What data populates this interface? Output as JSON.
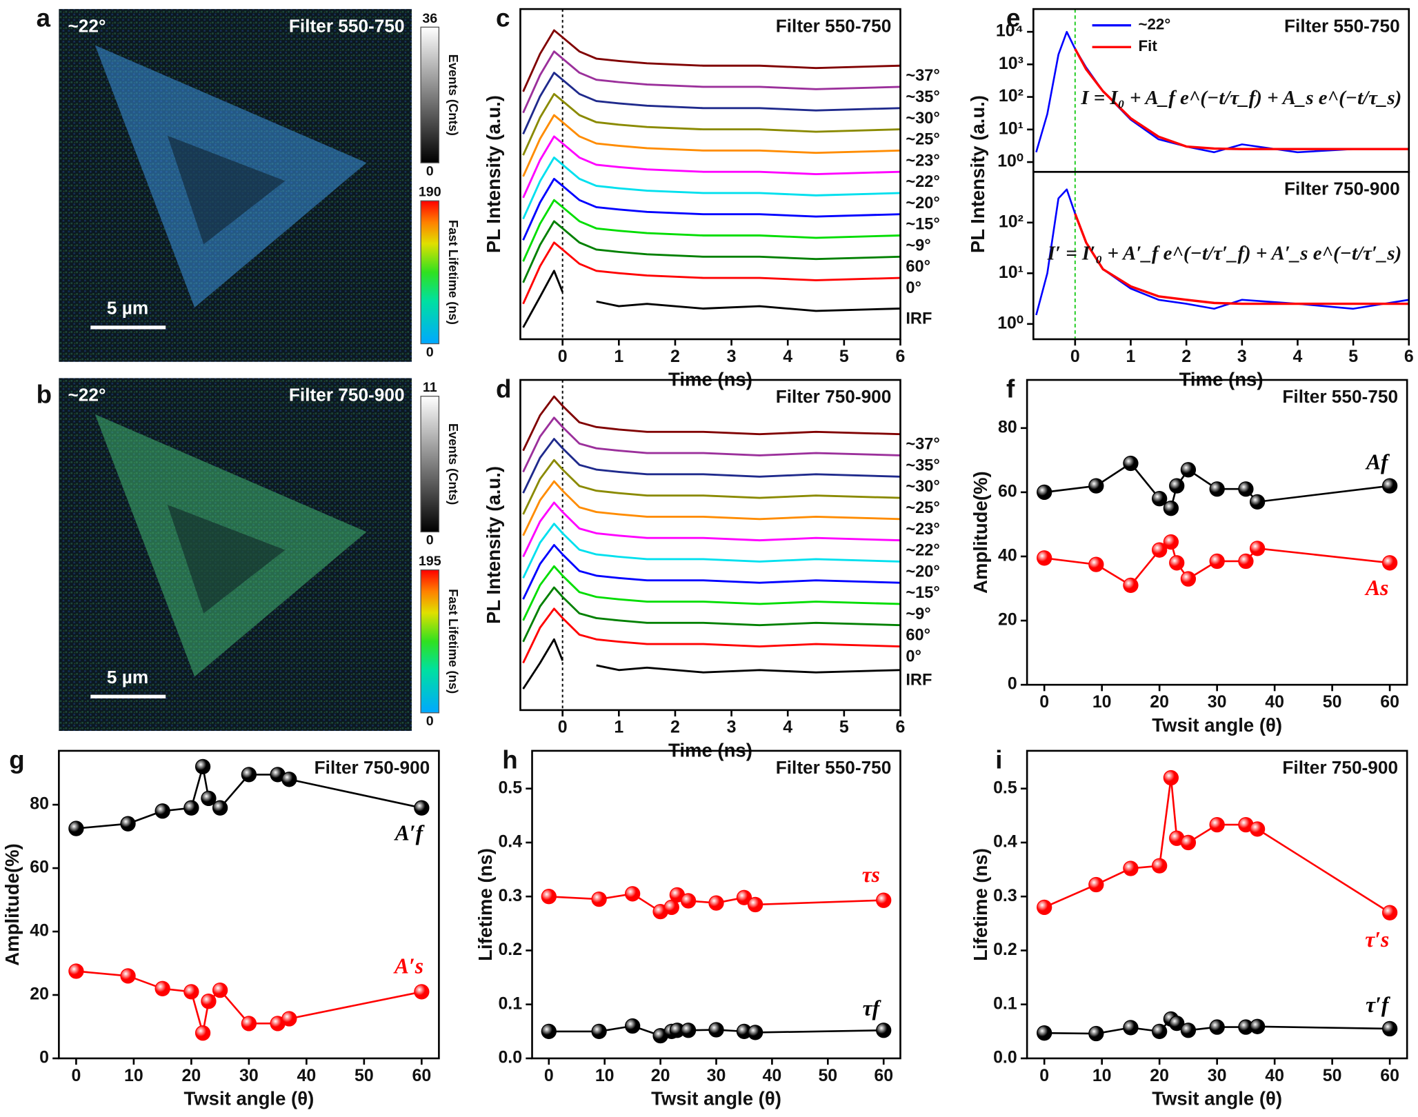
{
  "chart_data": [
    {
      "type": "image",
      "label": "a",
      "angle": "~22°",
      "title": "Filter 550-750",
      "scale": "5 µm",
      "events": {
        "max": 36,
        "min": 0,
        "label": "Events (Cnts)"
      },
      "lifetime": {
        "max": 190,
        "min": 0,
        "label": "Fast Lifetime (ns)"
      },
      "tint": "#3b8fd8"
    },
    {
      "type": "image",
      "label": "b",
      "angle": "~22°",
      "title": "Filter 750-900",
      "scale": "5 µm",
      "events": {
        "max": 11,
        "min": 0,
        "label": "Events (Cnts)"
      },
      "lifetime": {
        "max": 195,
        "min": 0,
        "label": "Fast Lifetime (ns)"
      },
      "tint": "#3fb070"
    },
    {
      "type": "decay",
      "label": "c",
      "title": "Filter 550-750",
      "xlabel": "Time (ns)",
      "ylabel": "PL Intensity (a.u.)",
      "xlim": [
        -0.75,
        6
      ],
      "xticks": [
        0,
        1,
        2,
        3,
        4,
        5,
        6
      ],
      "ylim": [
        0,
        14
      ],
      "vline": 0,
      "x": [
        -0.7,
        -0.4,
        -0.15,
        0,
        0.3,
        0.6,
        1,
        1.5,
        2.5,
        3.5,
        4.5,
        6
      ],
      "series": [
        {
          "name": "~37°",
          "color": "#800000",
          "values": [
            10.5,
            12.1,
            13.1,
            12.8,
            12.2,
            11.9,
            11.8,
            11.7,
            11.6,
            11.6,
            11.5,
            11.6
          ]
        },
        {
          "name": "~35°",
          "color": "#9b309b",
          "values": [
            9.6,
            11.2,
            12.2,
            11.9,
            11.3,
            11.0,
            10.9,
            10.8,
            10.7,
            10.7,
            10.6,
            10.7
          ]
        },
        {
          "name": "~30°",
          "color": "#1f2a8c",
          "values": [
            8.7,
            10.3,
            11.3,
            11.0,
            10.4,
            10.1,
            10.0,
            9.9,
            9.8,
            9.8,
            9.7,
            9.8
          ]
        },
        {
          "name": "~25°",
          "color": "#8a8a00",
          "values": [
            7.8,
            9.4,
            10.4,
            10.1,
            9.5,
            9.2,
            9.1,
            9.0,
            8.9,
            8.9,
            8.8,
            8.9
          ]
        },
        {
          "name": "~23°",
          "color": "#ff8c00",
          "values": [
            6.9,
            8.5,
            9.5,
            9.2,
            8.6,
            8.3,
            8.2,
            8.1,
            8.0,
            8.0,
            7.9,
            8.0
          ]
        },
        {
          "name": "~22°",
          "color": "#ff00ff",
          "values": [
            6.0,
            7.6,
            8.6,
            8.3,
            7.7,
            7.4,
            7.3,
            7.2,
            7.1,
            7.1,
            7.0,
            7.1
          ]
        },
        {
          "name": "~20°",
          "color": "#00e0ee",
          "values": [
            5.1,
            6.7,
            7.7,
            7.4,
            6.8,
            6.5,
            6.4,
            6.3,
            6.2,
            6.2,
            6.1,
            6.2
          ]
        },
        {
          "name": "~15°",
          "color": "#0000ff",
          "values": [
            4.2,
            5.8,
            6.8,
            6.5,
            5.9,
            5.6,
            5.5,
            5.4,
            5.3,
            5.3,
            5.2,
            5.3
          ]
        },
        {
          "name": "~9°",
          "color": "#00dd00",
          "values": [
            3.3,
            4.9,
            5.9,
            5.6,
            5.0,
            4.7,
            4.6,
            4.5,
            4.4,
            4.4,
            4.3,
            4.4
          ]
        },
        {
          "name": "60°",
          "color": "#008000",
          "values": [
            2.4,
            4.0,
            5.0,
            4.7,
            4.1,
            3.8,
            3.7,
            3.6,
            3.5,
            3.5,
            3.4,
            3.5
          ]
        },
        {
          "name": "0°",
          "color": "#ff0000",
          "values": [
            1.5,
            3.1,
            4.1,
            3.8,
            3.2,
            2.9,
            2.8,
            2.7,
            2.6,
            2.6,
            2.5,
            2.6
          ]
        },
        {
          "name": "IRF",
          "color": "#000000",
          "values": [
            0.5,
            1.8,
            2.9,
            2.0,
            null,
            1.6,
            1.4,
            1.5,
            1.3,
            1.4,
            1.2,
            1.3
          ]
        }
      ]
    },
    {
      "type": "decay",
      "label": "d",
      "title": "Filter 750-900",
      "xlabel": "Time (ns)",
      "ylabel": "PL Intensity (a.u.)",
      "xlim": [
        -0.75,
        6
      ],
      "xticks": [
        0,
        1,
        2,
        3,
        4,
        5,
        6
      ],
      "ylim": [
        0,
        14
      ],
      "vline": 0,
      "x": [
        -0.7,
        -0.4,
        -0.15,
        0,
        0.3,
        0.6,
        1,
        1.5,
        2.5,
        3.5,
        4.5,
        6
      ],
      "series": [
        {
          "name": "~37°",
          "color": "#800000",
          "values": [
            11.0,
            12.5,
            13.3,
            12.9,
            12.2,
            12.0,
            11.9,
            11.8,
            11.8,
            11.7,
            11.8,
            11.7
          ]
        },
        {
          "name": "~35°",
          "color": "#9b309b",
          "values": [
            10.1,
            11.6,
            12.4,
            12.0,
            11.3,
            11.1,
            11.0,
            10.9,
            10.9,
            10.8,
            10.9,
            10.8
          ]
        },
        {
          "name": "~30°",
          "color": "#1f2a8c",
          "values": [
            9.2,
            10.7,
            11.5,
            11.1,
            10.4,
            10.2,
            10.1,
            10.0,
            10.0,
            9.9,
            10.0,
            9.9
          ]
        },
        {
          "name": "~25°",
          "color": "#8a8a00",
          "values": [
            8.3,
            9.8,
            10.6,
            10.2,
            9.5,
            9.3,
            9.2,
            9.1,
            9.1,
            9.0,
            9.1,
            9.0
          ]
        },
        {
          "name": "~23°",
          "color": "#ff8c00",
          "values": [
            7.4,
            8.9,
            9.7,
            9.3,
            8.6,
            8.4,
            8.3,
            8.2,
            8.2,
            8.1,
            8.2,
            8.1
          ]
        },
        {
          "name": "~22°",
          "color": "#ff00ff",
          "values": [
            6.5,
            8.0,
            8.8,
            8.4,
            7.7,
            7.5,
            7.4,
            7.3,
            7.3,
            7.2,
            7.3,
            7.2
          ]
        },
        {
          "name": "~20°",
          "color": "#00e0ee",
          "values": [
            5.6,
            7.1,
            7.9,
            7.5,
            6.8,
            6.6,
            6.5,
            6.4,
            6.4,
            6.3,
            6.4,
            6.3
          ]
        },
        {
          "name": "~15°",
          "color": "#0000ff",
          "values": [
            4.7,
            6.2,
            7.0,
            6.6,
            5.9,
            5.7,
            5.6,
            5.5,
            5.5,
            5.4,
            5.5,
            5.4
          ]
        },
        {
          "name": "~9°",
          "color": "#00dd00",
          "values": [
            3.8,
            5.3,
            6.1,
            5.7,
            5.0,
            4.8,
            4.7,
            4.6,
            4.6,
            4.5,
            4.6,
            4.5
          ]
        },
        {
          "name": "60°",
          "color": "#008000",
          "values": [
            2.9,
            4.4,
            5.2,
            4.8,
            4.1,
            3.9,
            3.8,
            3.7,
            3.7,
            3.6,
            3.7,
            3.6
          ]
        },
        {
          "name": "0°",
          "color": "#ff0000",
          "values": [
            2.0,
            3.5,
            4.3,
            3.9,
            3.2,
            3.0,
            2.9,
            2.8,
            2.8,
            2.7,
            2.8,
            2.7
          ]
        },
        {
          "name": "IRF",
          "color": "#000000",
          "values": [
            0.9,
            2.0,
            3.0,
            2.1,
            null,
            1.9,
            1.7,
            1.8,
            1.6,
            1.7,
            1.6,
            1.7
          ]
        }
      ]
    },
    {
      "type": "semilog",
      "label": "e",
      "xlabel": "Time (ns)",
      "ylabel": "PL Intensity (a.u.)",
      "xlim": [
        -0.75,
        6
      ],
      "xticks": [
        0,
        1,
        2,
        3,
        4,
        5,
        6
      ],
      "vline": 0,
      "vline_color": "#22cc22",
      "x": [
        -0.7,
        -0.5,
        -0.3,
        -0.15,
        0,
        0.2,
        0.5,
        1,
        1.5,
        2,
        2.5,
        3,
        4,
        5,
        6
      ],
      "panels": [
        {
          "title": "Filter 550-750",
          "equation": "I = I₀ + A_f e^(−t/τ_f) + A_s e^(−t/τ_s)",
          "ylim": [
            0.5,
            50000
          ],
          "yticks": [
            {
              "value": 1,
              "label": "10⁰"
            },
            {
              "value": 10,
              "label": "10¹"
            },
            {
              "value": 100,
              "label": "10²"
            },
            {
              "value": 1000,
              "label": "10³"
            },
            {
              "value": 10000,
              "label": "10⁴"
            }
          ],
          "series": [
            {
              "name": "~22°",
              "color": "#0000ff",
              "values": [
                2,
                30,
                2000,
                10000,
                3000,
                800,
                150,
                20,
                5,
                3,
                2,
                3.5,
                2,
                2.5,
                2.5
              ]
            },
            {
              "name": "Fit",
              "color": "#ff0000",
              "values": [
                null,
                null,
                null,
                null,
                3000,
                700,
                150,
                22,
                6,
                3,
                2.6,
                2.5,
                2.5,
                2.5,
                2.5
              ]
            }
          ]
        },
        {
          "title": "Filter 750-900",
          "equation": "I′ = I′₀ + A′_f e^(−t/τ′_f) + A′_s e^(−t/τ′_s)",
          "ylim": [
            0.5,
            1000
          ],
          "yticks": [
            {
              "value": 1,
              "label": "10⁰"
            },
            {
              "value": 10,
              "label": "10¹"
            },
            {
              "value": 100,
              "label": "10²"
            }
          ],
          "series": [
            {
              "color": "#0000ff",
              "values": [
                1.5,
                10,
                300,
                450,
                150,
                40,
                12,
                5,
                3,
                2.5,
                2,
                3,
                2.5,
                2,
                3
              ]
            },
            {
              "color": "#ff0000",
              "values": [
                null,
                null,
                null,
                null,
                150,
                40,
                12,
                5.5,
                3.5,
                3,
                2.6,
                2.5,
                2.5,
                2.5,
                2.5
              ]
            }
          ]
        }
      ]
    },
    {
      "type": "line",
      "label": "f",
      "title": "Filter 550-750",
      "xlabel": "Twsit angle (θ)",
      "ylabel": "Amplitude(%)",
      "xlim": [
        -3,
        63
      ],
      "xticks": [
        0,
        10,
        20,
        30,
        40,
        50,
        60
      ],
      "ylim": [
        0,
        95
      ],
      "yticks": [
        0,
        20,
        40,
        60,
        80
      ],
      "x": [
        0,
        9,
        15,
        20,
        22,
        23,
        25,
        30,
        35,
        37,
        60
      ],
      "series": [
        {
          "name": "Af",
          "color": "#000000",
          "values": [
            60,
            62,
            69,
            58,
            55,
            62,
            67,
            61,
            61,
            57,
            62
          ]
        },
        {
          "name": "As",
          "color": "#ff0000",
          "values": [
            39.5,
            37.5,
            31,
            42,
            44.5,
            38,
            33,
            38.5,
            38.5,
            42.5,
            38
          ]
        }
      ]
    },
    {
      "type": "line",
      "label": "g",
      "title": "Filter 750-900",
      "xlabel": "Twsit angle (θ)",
      "ylabel": "Amplitude(%)",
      "xlim": [
        -3,
        63
      ],
      "xticks": [
        0,
        10,
        20,
        30,
        40,
        50,
        60
      ],
      "ylim": [
        0,
        97
      ],
      "yticks": [
        0,
        20,
        40,
        60,
        80
      ],
      "x": [
        0,
        9,
        15,
        20,
        22,
        23,
        25,
        30,
        35,
        37,
        60
      ],
      "series": [
        {
          "name": "A′f",
          "color": "#000000",
          "values": [
            72.5,
            74,
            78,
            79,
            92,
            82,
            79,
            89.5,
            89.5,
            88,
            79
          ]
        },
        {
          "name": "A′s",
          "color": "#ff0000",
          "values": [
            27.5,
            26,
            22,
            21,
            8,
            18,
            21.5,
            11,
            11,
            12.5,
            21
          ]
        }
      ]
    },
    {
      "type": "line",
      "label": "h",
      "title": "Filter 550-750",
      "xlabel": "Twsit angle (θ)",
      "ylabel": "Lifetime  (ns)",
      "xlim": [
        -3,
        63
      ],
      "xticks": [
        0,
        10,
        20,
        30,
        40,
        50,
        60
      ],
      "ylim": [
        0,
        0.57
      ],
      "yticks": [
        {
          "value": 0,
          "label": "0.0"
        },
        0.1,
        0.2,
        0.3,
        0.4,
        0.5
      ],
      "x": [
        0,
        9,
        15,
        20,
        22,
        23,
        25,
        30,
        35,
        37,
        60
      ],
      "series": [
        {
          "name": "τs",
          "color": "#ff0000",
          "values": [
            0.3,
            0.295,
            0.305,
            0.272,
            0.28,
            0.303,
            0.292,
            0.288,
            0.298,
            0.285,
            0.293
          ]
        },
        {
          "name": "τf",
          "color": "#000000",
          "values": [
            0.05,
            0.05,
            0.06,
            0.042,
            0.05,
            0.052,
            0.052,
            0.053,
            0.05,
            0.048,
            0.052
          ]
        }
      ]
    },
    {
      "type": "line",
      "label": "i",
      "title": "Filter 750-900",
      "xlabel": "Twsit angle (θ)",
      "ylabel": "Lifetime  (ns)",
      "xlim": [
        -3,
        63
      ],
      "xticks": [
        0,
        10,
        20,
        30,
        40,
        50,
        60
      ],
      "ylim": [
        0,
        0.57
      ],
      "yticks": [
        {
          "value": 0,
          "label": "0.0"
        },
        0.1,
        0.2,
        0.3,
        0.4,
        0.5
      ],
      "x": [
        0,
        9,
        15,
        20,
        22,
        23,
        25,
        30,
        35,
        37,
        60
      ],
      "series": [
        {
          "name": "τ′s",
          "color": "#ff0000",
          "values": [
            0.28,
            0.322,
            0.352,
            0.357,
            0.52,
            0.408,
            0.4,
            0.433,
            0.433,
            0.425,
            0.27
          ]
        },
        {
          "name": "τ′f",
          "color": "#000000",
          "values": [
            0.047,
            0.046,
            0.057,
            0.05,
            0.073,
            0.065,
            0.052,
            0.058,
            0.058,
            0.059,
            0.055
          ]
        }
      ]
    }
  ]
}
